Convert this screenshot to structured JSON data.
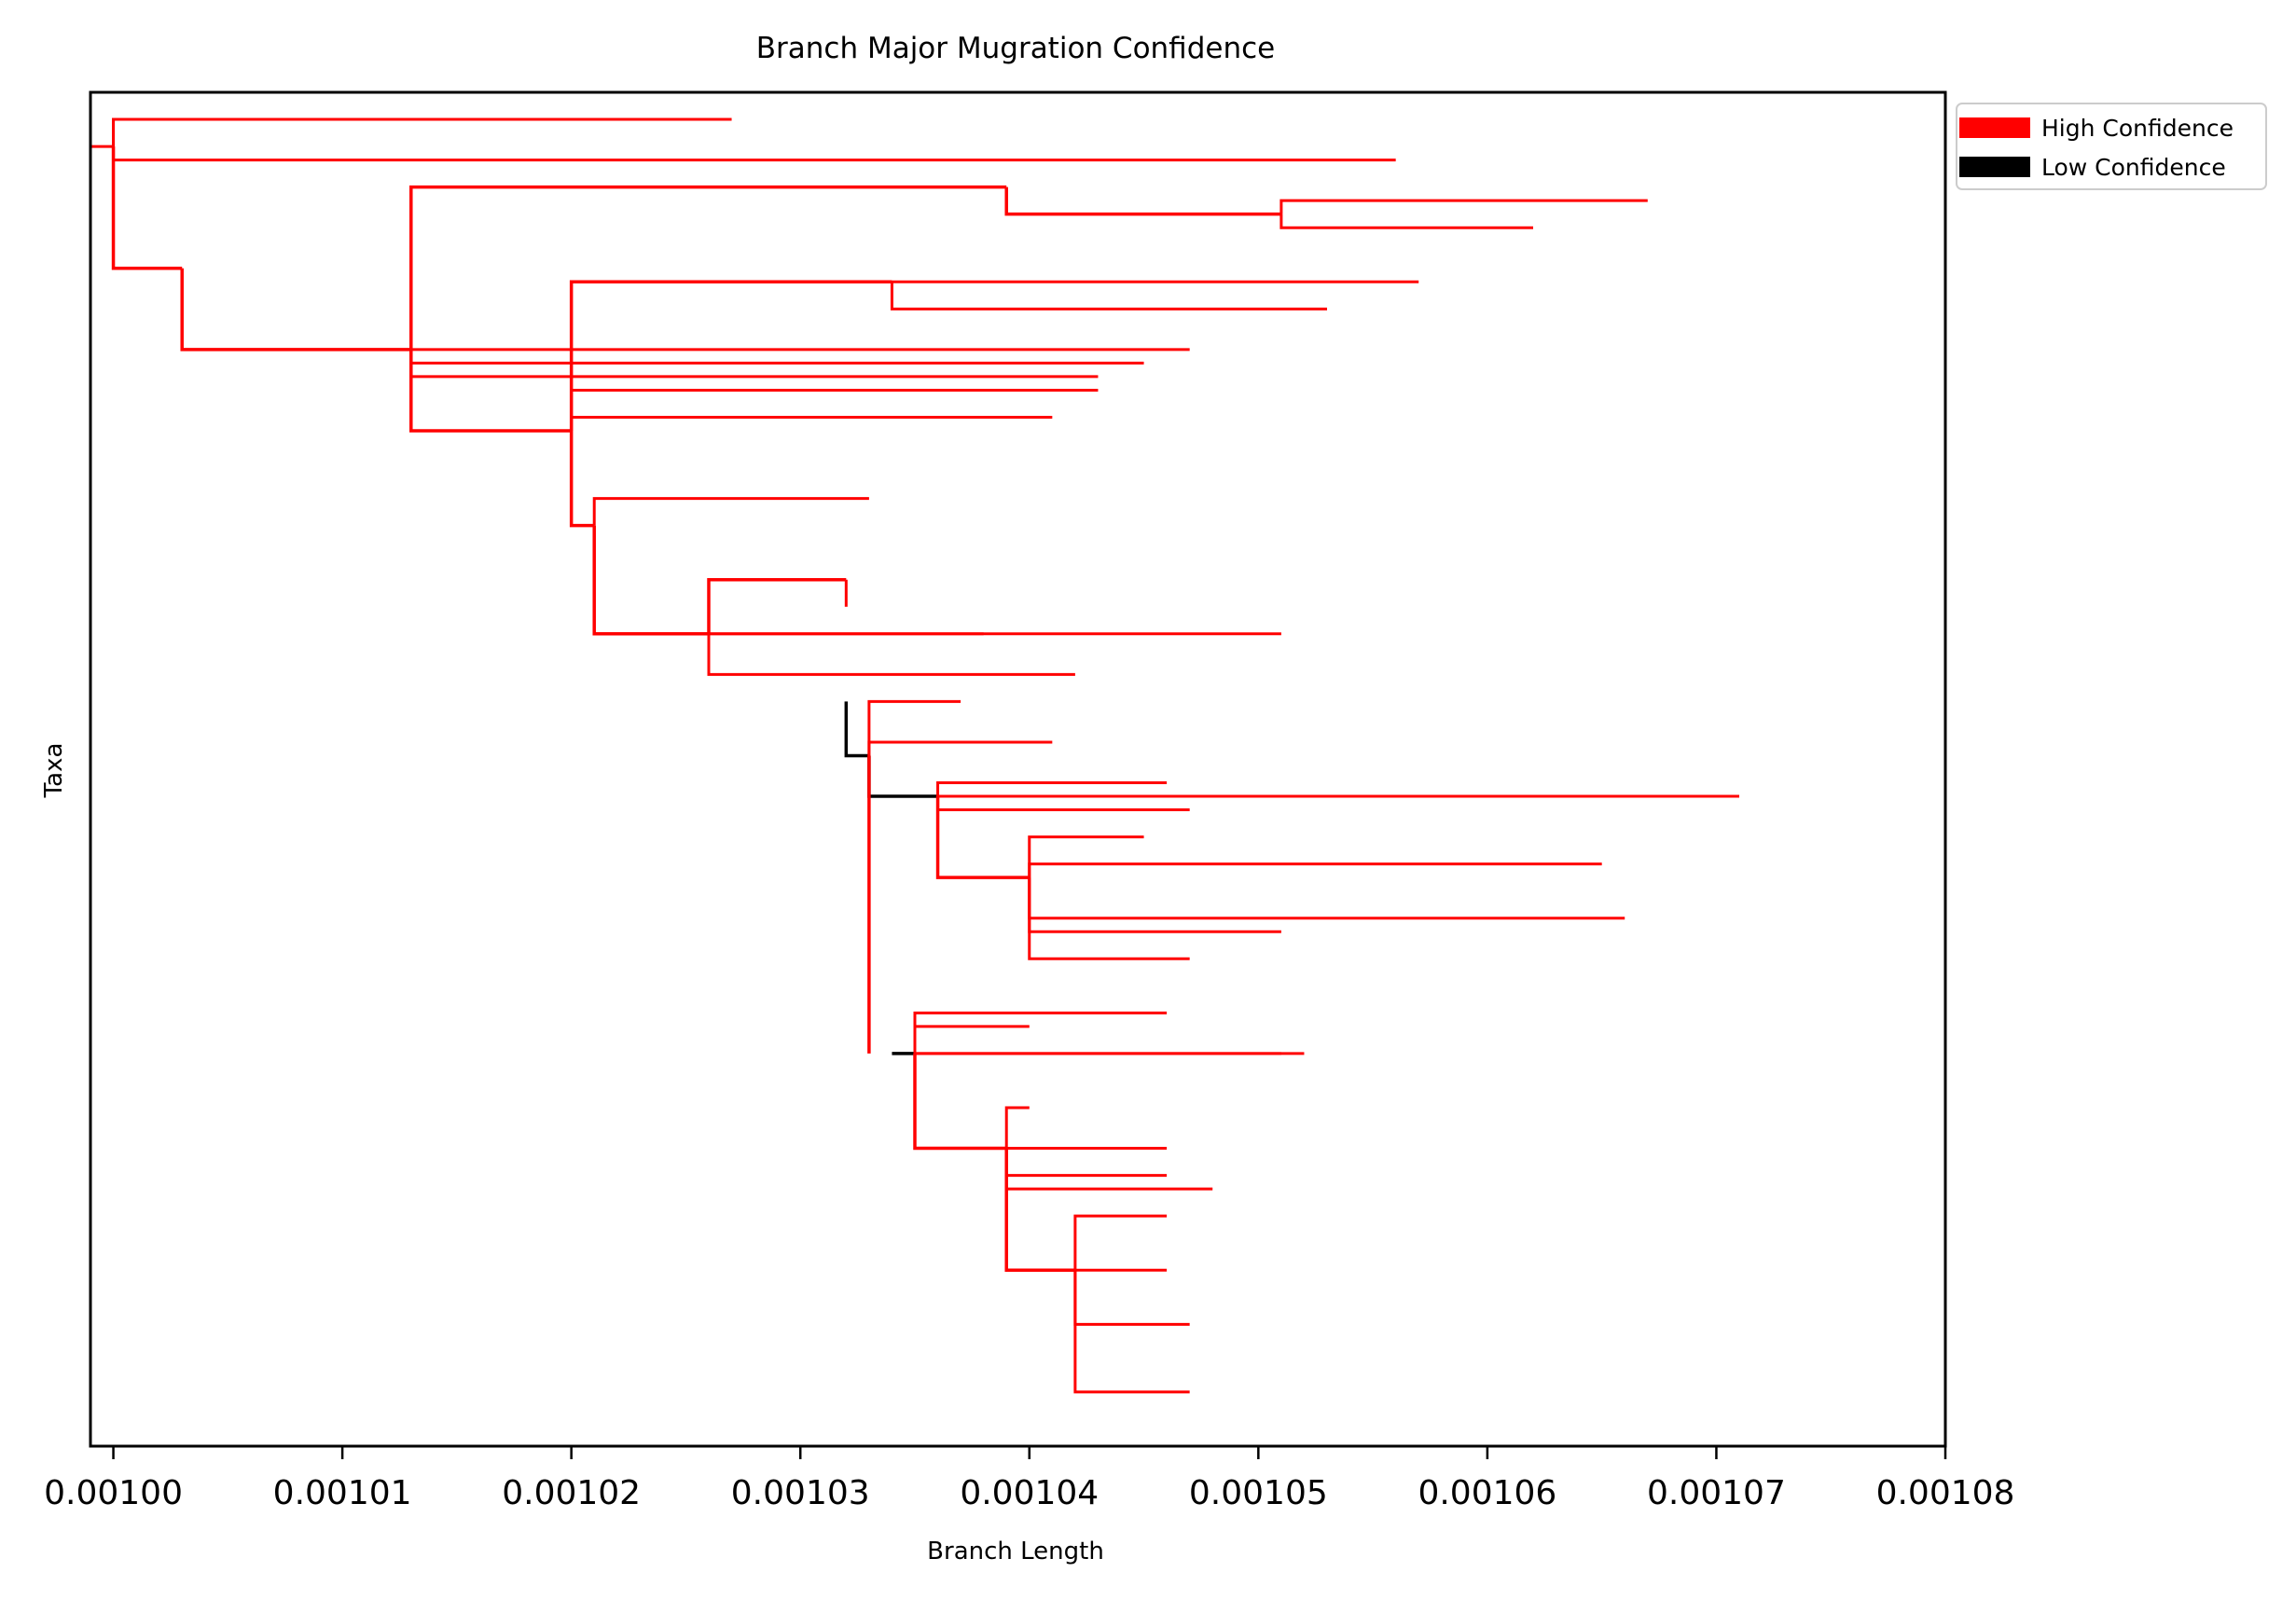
{
  "chart_data": {
    "type": "tree",
    "title": "Branch Major Mugration Confidence",
    "xlabel": "Branch Length",
    "ylabel": "Taxa",
    "xlim": [
      0.000999,
      0.00108
    ],
    "xticks": [
      0.001,
      0.00101,
      0.00102,
      0.00103,
      0.00104,
      0.00105,
      0.00106,
      0.00107,
      0.00108
    ],
    "xtick_labels": [
      "0.00100",
      "0.00101",
      "0.00102",
      "0.00103",
      "0.00104",
      "0.00105",
      "0.00106",
      "0.00107",
      "0.00108"
    ],
    "ylim": [
      0,
      100
    ],
    "grid": false,
    "legend": {
      "placement": "outside-top-right",
      "entries": [
        {
          "label": "High Confidence",
          "color": "#ff0000"
        },
        {
          "label": "Low Confidence",
          "color": "#000000"
        }
      ]
    },
    "colors": {
      "high": "#ff0000",
      "low": "#000000"
    },
    "clades": [
      {
        "x0": 0.001,
        "y0": 4,
        "x1": 0.001003,
        "y1": 13,
        "confidence": "high"
      },
      {
        "x0": 0.001003,
        "y0": 13,
        "x1": 0.001013,
        "y1": 19,
        "confidence": "high"
      },
      {
        "x0": 0.001013,
        "y0": 19,
        "x1": 0.001039,
        "y1": 7,
        "confidence": "high"
      },
      {
        "x0": 0.001039,
        "y0": 7,
        "x1": 0.001051,
        "y1": 9,
        "confidence": "high"
      },
      {
        "x0": 0.001013,
        "y0": 19,
        "x1": 0.00102,
        "y1": 25,
        "confidence": "high"
      },
      {
        "x0": 0.00102,
        "y0": 25,
        "x1": 0.001034,
        "y1": 14,
        "confidence": "high"
      },
      {
        "x0": 0.00102,
        "y0": 25,
        "x1": 0.001021,
        "y1": 32,
        "confidence": "high"
      },
      {
        "x0": 0.001021,
        "y0": 32,
        "x1": 0.001026,
        "y1": 40,
        "confidence": "high"
      },
      {
        "x0": 0.001026,
        "y0": 40,
        "x1": 0.001032,
        "y1": 36,
        "confidence": "high"
      },
      {
        "x0": 0.001032,
        "y0": 45,
        "x1": 0.001033,
        "y1": 49,
        "confidence": "low"
      },
      {
        "x0": 0.001033,
        "y0": 49,
        "x1": 0.001036,
        "y1": 52,
        "confidence": "low"
      },
      {
        "x0": 0.001036,
        "y0": 52,
        "x1": 0.00104,
        "y1": 58,
        "confidence": "high"
      },
      {
        "x0": 0.001033,
        "y0": 49,
        "x1": 0.001033,
        "y1": 71,
        "confidence": "high"
      },
      {
        "x0": 0.001034,
        "y0": 71,
        "x1": 0.001035,
        "y1": 71,
        "confidence": "low"
      },
      {
        "x0": 0.001035,
        "y0": 71,
        "x1": 0.001039,
        "y1": 78,
        "confidence": "high"
      },
      {
        "x0": 0.001039,
        "y0": 78,
        "x1": 0.001042,
        "y1": 87,
        "confidence": "high"
      }
    ],
    "leaves": [
      {
        "x": 0.001027,
        "y": 2
      },
      {
        "x": 0.001022,
        "y": 2
      },
      {
        "x": 0.001056,
        "y": 5
      },
      {
        "x": 0.001067,
        "y": 8
      },
      {
        "x": 0.001062,
        "y": 10
      },
      {
        "x": 0.001057,
        "y": 14
      },
      {
        "x": 0.001053,
        "y": 16
      },
      {
        "x": 0.001047,
        "y": 19
      },
      {
        "x": 0.001045,
        "y": 20
      },
      {
        "x": 0.001043,
        "y": 21
      },
      {
        "x": 0.001043,
        "y": 22
      },
      {
        "x": 0.001041,
        "y": 24
      },
      {
        "x": 0.001033,
        "y": 30
      },
      {
        "x": 0.001032,
        "y": 38
      },
      {
        "x": 0.001038,
        "y": 40
      },
      {
        "x": 0.001051,
        "y": 40
      },
      {
        "x": 0.001042,
        "y": 43
      },
      {
        "x": 0.001037,
        "y": 45
      },
      {
        "x": 0.001041,
        "y": 48
      },
      {
        "x": 0.001046,
        "y": 51
      },
      {
        "x": 0.001071,
        "y": 52
      },
      {
        "x": 0.001047,
        "y": 53
      },
      {
        "x": 0.001045,
        "y": 55
      },
      {
        "x": 0.001065,
        "y": 57
      },
      {
        "x": 0.001066,
        "y": 61
      },
      {
        "x": 0.001051,
        "y": 62
      },
      {
        "x": 0.001047,
        "y": 64
      },
      {
        "x": 0.001046,
        "y": 68
      },
      {
        "x": 0.00104,
        "y": 69
      },
      {
        "x": 0.001052,
        "y": 71
      },
      {
        "x": 0.001051,
        "y": 71
      },
      {
        "x": 0.00104,
        "y": 75
      },
      {
        "x": 0.001046,
        "y": 78
      },
      {
        "x": 0.001046,
        "y": 80
      },
      {
        "x": 0.001048,
        "y": 81
      },
      {
        "x": 0.001046,
        "y": 83
      },
      {
        "x": 0.001046,
        "y": 87
      },
      {
        "x": 0.001047,
        "y": 91
      },
      {
        "x": 0.001047,
        "y": 96
      }
    ]
  }
}
